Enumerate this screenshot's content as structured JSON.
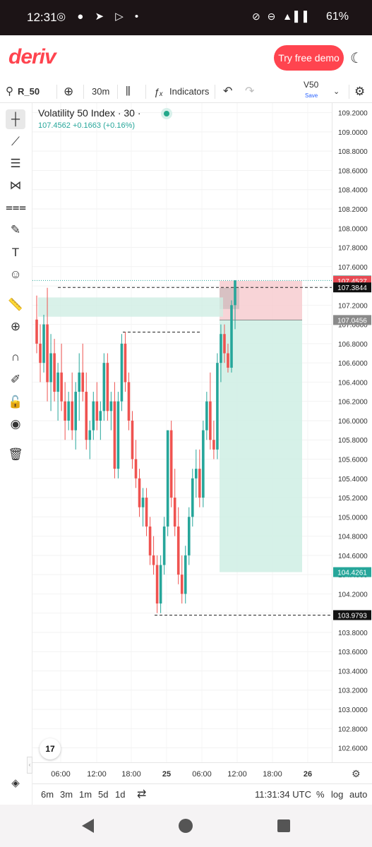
{
  "status_bar": {
    "time": "12:31",
    "battery": "61%"
  },
  "header": {
    "logo": "deriv",
    "demo_button": "Try free demo"
  },
  "toolbar": {
    "symbol": "R_50",
    "interval": "30m",
    "indicators_label": "Indicators",
    "layout_name": "V50",
    "layout_save": "Save"
  },
  "legend": {
    "title": "Volatility 50 Index · 30 ·",
    "price": "107.4562",
    "change": "+0.1663 (+0.16%)"
  },
  "chart_data": {
    "type": "candlestick",
    "ylim": [
      102.45,
      109.3
    ],
    "y_ticks": [
      "109.2000",
      "109.0000",
      "108.8000",
      "108.6000",
      "108.4000",
      "108.2000",
      "108.0000",
      "107.8000",
      "107.6000",
      "107.4000",
      "107.2000",
      "107.0000",
      "106.8000",
      "106.6000",
      "106.4000",
      "106.2000",
      "106.0000",
      "105.8000",
      "105.6000",
      "105.4000",
      "105.2000",
      "105.0000",
      "104.8000",
      "104.6000",
      "104.4000",
      "104.2000",
      "104.0000",
      "103.8000",
      "103.6000",
      "103.4000",
      "103.2000",
      "103.0000",
      "102.8000",
      "102.6000"
    ],
    "x_ticks": [
      "06:00",
      "12:00",
      "18:00",
      "25",
      "06:00",
      "12:00",
      "18:00",
      "26"
    ],
    "price_labels": [
      {
        "value": "107.4562",
        "color": "#26a69a"
      },
      {
        "value": "107.4527",
        "color": "#e84b54"
      },
      {
        "value": "107.3844",
        "color": "#111111"
      },
      {
        "value": "107.0456",
        "color": "#8a8a8a"
      },
      {
        "value": "104.4261",
        "color": "#26a69a"
      },
      {
        "value": "103.9793",
        "color": "#111111"
      }
    ],
    "position": {
      "entry": 107.0456,
      "stop": 107.4527,
      "target": 104.4261
    },
    "level_lines": [
      107.3844,
      106.92,
      103.9793
    ],
    "candles_ohlc": [
      [
        107.05,
        107.3,
        106.7,
        106.8
      ],
      [
        106.8,
        107.0,
        106.4,
        106.6
      ],
      [
        106.6,
        107.1,
        106.5,
        107.0
      ],
      [
        107.0,
        107.38,
        106.2,
        106.4
      ],
      [
        106.4,
        106.9,
        106.1,
        106.7
      ],
      [
        106.7,
        106.85,
        106.2,
        106.3
      ],
      [
        106.3,
        106.6,
        106.0,
        106.5
      ],
      [
        106.5,
        106.8,
        106.1,
        106.2
      ],
      [
        106.2,
        106.4,
        105.8,
        106.0
      ],
      [
        106.0,
        106.3,
        105.9,
        106.2
      ],
      [
        106.2,
        106.5,
        105.8,
        105.9
      ],
      [
        105.9,
        106.4,
        105.7,
        106.3
      ],
      [
        106.3,
        106.7,
        106.0,
        106.5
      ],
      [
        106.5,
        106.8,
        106.2,
        106.3
      ],
      [
        106.3,
        106.5,
        105.7,
        105.8
      ],
      [
        105.8,
        106.0,
        105.6,
        105.9
      ],
      [
        105.9,
        106.3,
        105.8,
        106.2
      ],
      [
        106.2,
        106.4,
        105.9,
        106.0
      ],
      [
        106.0,
        106.2,
        105.8,
        106.1
      ],
      [
        106.1,
        106.7,
        106.0,
        106.6
      ],
      [
        106.6,
        106.7,
        106.0,
        106.1
      ],
      [
        106.1,
        106.3,
        105.9,
        106.2
      ],
      [
        106.2,
        106.4,
        105.4,
        105.5
      ],
      [
        105.5,
        106.3,
        105.4,
        106.2
      ],
      [
        106.2,
        106.9,
        106.1,
        106.8
      ],
      [
        106.8,
        106.92,
        106.3,
        106.4
      ],
      [
        106.4,
        106.5,
        105.9,
        106.0
      ],
      [
        106.0,
        106.1,
        105.5,
        105.6
      ],
      [
        105.6,
        105.8,
        105.3,
        105.4
      ],
      [
        105.4,
        105.5,
        105.0,
        105.1
      ],
      [
        105.1,
        105.3,
        104.9,
        105.2
      ],
      [
        105.2,
        105.3,
        104.8,
        104.9
      ],
      [
        104.9,
        105.0,
        104.5,
        104.6
      ],
      [
        104.6,
        104.8,
        104.4,
        104.5
      ],
      [
        104.5,
        104.6,
        104.0,
        104.1
      ],
      [
        104.1,
        104.6,
        104.0,
        104.5
      ],
      [
        104.5,
        105.0,
        104.4,
        104.9
      ],
      [
        104.9,
        105.9,
        104.8,
        105.9
      ],
      [
        105.9,
        106.0,
        105.1,
        105.2
      ],
      [
        105.2,
        105.5,
        104.8,
        104.9
      ],
      [
        104.9,
        105.1,
        104.3,
        104.4
      ],
      [
        104.4,
        104.6,
        104.1,
        104.2
      ],
      [
        104.2,
        104.7,
        104.1,
        104.6
      ],
      [
        104.6,
        105.1,
        104.5,
        105.0
      ],
      [
        105.0,
        105.5,
        104.9,
        105.4
      ],
      [
        105.4,
        105.7,
        105.2,
        105.5
      ],
      [
        105.5,
        105.7,
        105.1,
        105.2
      ],
      [
        105.2,
        106.0,
        105.1,
        105.9
      ],
      [
        105.9,
        106.3,
        105.8,
        106.2
      ],
      [
        106.2,
        106.5,
        105.7,
        105.8
      ],
      [
        105.8,
        106.0,
        105.6,
        105.7
      ],
      [
        105.7,
        106.7,
        105.6,
        106.6
      ],
      [
        106.6,
        107.0,
        106.4,
        106.9
      ],
      [
        106.9,
        107.0,
        106.6,
        106.7
      ],
      [
        106.7,
        106.8,
        106.5,
        106.55
      ],
      [
        106.55,
        107.25,
        106.5,
        107.2
      ],
      [
        107.2,
        107.46,
        106.95,
        107.4562
      ]
    ]
  },
  "x_axis_time": "11:31:34 UTC",
  "bottom_bar": {
    "ranges": [
      "6m",
      "3m",
      "1m",
      "5d",
      "1d"
    ],
    "percent": "%",
    "log": "log",
    "auto": "auto"
  }
}
